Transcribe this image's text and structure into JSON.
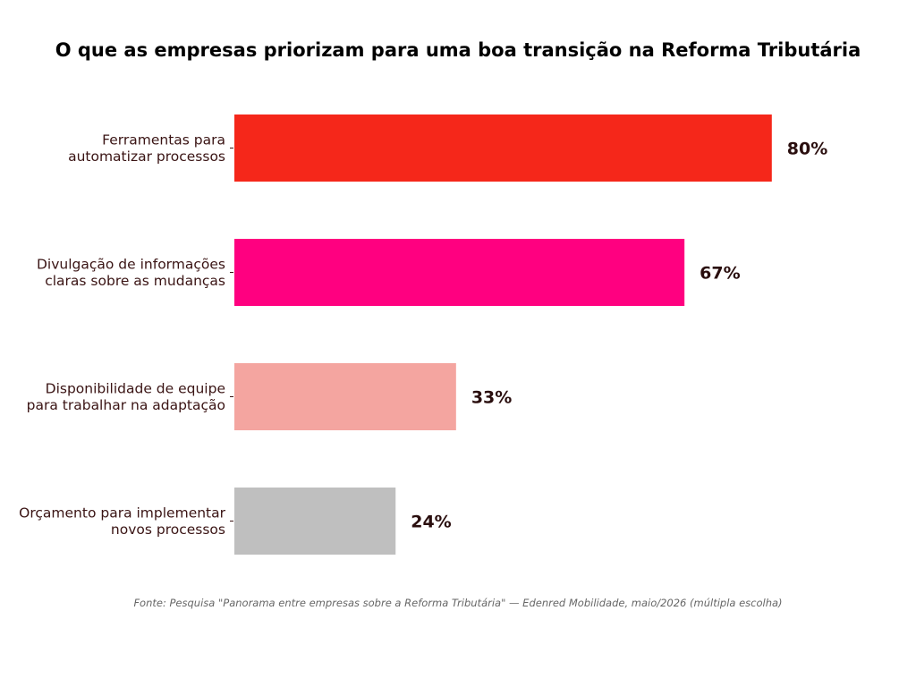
{
  "chart_data": {
    "type": "bar",
    "orientation": "horizontal",
    "title": "O que as empresas priorizam para uma boa transição na Reforma Tributária",
    "categories": [
      [
        "Ferramentas para",
        "automatizar processos"
      ],
      [
        "Divulgação de informações",
        "claras sobre as mudanças"
      ],
      [
        "Disponibilidade de equipe",
        "para trabalhar na adaptação"
      ],
      [
        "Orçamento para implementar",
        "novos processos"
      ]
    ],
    "values": [
      80,
      67,
      33,
      24
    ],
    "value_labels": [
      "80%",
      "67%",
      "33%",
      "24%"
    ],
    "colors": [
      "#f5271a",
      "#ff0080",
      "#f4a5a0",
      "#bfbfbf"
    ],
    "xlim": [
      0,
      100
    ],
    "grid": false,
    "legend": "none",
    "source": "Fonte: Pesquisa \"Panorama entre empresas sobre a Reforma Tributária\" — Edenred Mobilidade, maio/2026 (múltipla escolha)"
  }
}
